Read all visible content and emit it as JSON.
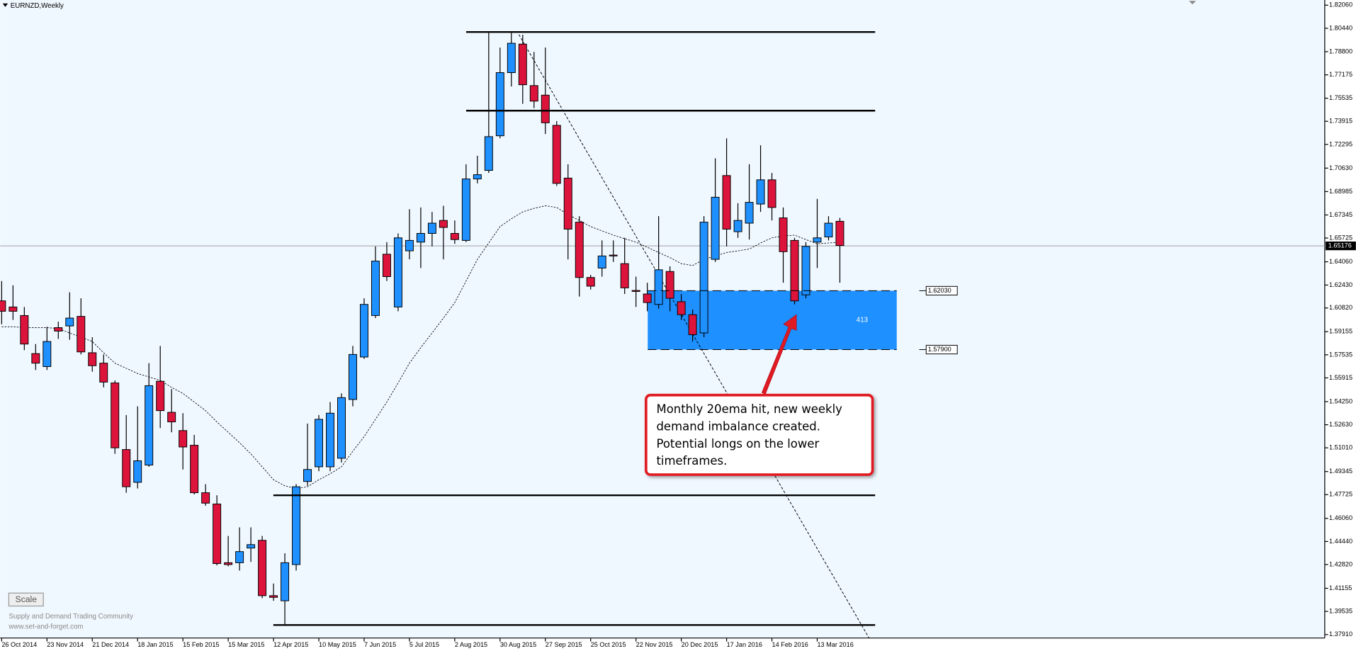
{
  "chart_data": {
    "type": "candlestick",
    "title": "EURNZD,Weekly",
    "categories": [
      "26 Oct 2014",
      null,
      null,
      null,
      "23 Nov 2014",
      null,
      null,
      null,
      "21 Dec 2014",
      null,
      null,
      null,
      "18 Jan 2015",
      null,
      null,
      null,
      "15 Feb 2015",
      null,
      null,
      null,
      "15 Mar 2015",
      null,
      null,
      null,
      "12 Apr 2015",
      null,
      null,
      null,
      "10 May 2015",
      null,
      null,
      null,
      "7 Jun 2015",
      null,
      null,
      null,
      "5 Jul 2015",
      null,
      null,
      null,
      "2 Aug 2015",
      null,
      null,
      null,
      "30 Aug 2015",
      null,
      null,
      null,
      "27 Sep 2015",
      null,
      null,
      null,
      "25 Oct 2015",
      null,
      null,
      null,
      "22 Nov 2015",
      null,
      null,
      null,
      "20 Dec 2015",
      null,
      null,
      null,
      "17 Jan 2016",
      null,
      null,
      null,
      "14 Feb 2016",
      null,
      null,
      null,
      "13 Mar 2016",
      null,
      null
    ],
    "open": [
      1.6132,
      1.6089,
      1.6029,
      1.5762,
      1.5671,
      1.5944,
      1.5956,
      1.6023,
      1.5768,
      1.5695,
      1.5556,
      1.5089,
      1.4859,
      1.498,
      1.5568,
      1.535,
      1.5222,
      1.5119,
      1.4786,
      1.4707,
      1.4295,
      1.4295,
      1.4398,
      1.4452,
      1.4064,
      1.4028,
      1.4282,
      1.4865,
      1.4968,
      1.4968,
      1.5028,
      1.544,
      1.5738,
      1.6029,
      1.6459,
      1.6089,
      1.6483,
      1.6544,
      1.6605,
      1.6696,
      1.6605,
      1.6556,
      1.6987,
      1.7047,
      1.729,
      1.7733,
      1.7933,
      1.7642,
      1.7575,
      1.7363,
      1.6993,
      1.6684,
      1.6296,
      1.6362,
      1.6453,
      1.6393,
      1.6205,
      1.618,
      1.6107,
      1.6338,
      1.6126,
      1.6035,
      1.5907,
      1.6423,
      1.7011,
      1.6617,
      1.6677,
      1.6811,
      1.6981,
      1.6714,
      1.6556,
      1.6174,
      1.6544,
      1.658,
      1.669
    ],
    "high": [
      1.6271,
      1.6241,
      1.6089,
      1.5829,
      1.595,
      1.5986,
      1.6192,
      1.615,
      1.5877,
      1.5756,
      1.5574,
      1.5331,
      1.5392,
      1.5695,
      1.5816,
      1.5513,
      1.5344,
      1.5192,
      1.4846,
      1.4768,
      1.4483,
      1.4543,
      1.4543,
      1.4483,
      1.4149,
      1.4361,
      1.4846,
      1.5271,
      1.5331,
      1.5422,
      1.5483,
      1.5816,
      1.615,
      1.6514,
      1.6544,
      1.6605,
      1.6775,
      1.6787,
      1.6756,
      1.6799,
      1.6696,
      1.709,
      1.715,
      1.8012,
      1.7909,
      1.8012,
      1.7999,
      1.7878,
      1.7909,
      1.7393,
      1.709,
      1.6726,
      1.6314,
      1.6556,
      1.6556,
      1.6574,
      1.6302,
      1.6259,
      1.6726,
      1.6374,
      1.618,
      1.6071,
      1.6726,
      1.7132,
      1.7272,
      1.6817,
      1.709,
      1.7223,
      1.7029,
      1.6787,
      1.6574,
      1.6544,
      1.6847,
      1.6726,
      1.6714
    ],
    "low": [
      1.5968,
      1.5998,
      1.5786,
      1.5647,
      1.5647,
      1.5865,
      1.5859,
      1.5756,
      1.5635,
      1.5525,
      1.5059,
      1.4786,
      1.4816,
      1.4968,
      1.524,
      1.521,
      1.4949,
      1.4774,
      1.4695,
      1.4276,
      1.427,
      1.424,
      1.4301,
      1.4046,
      1.4028,
      1.3864,
      1.424,
      1.4834,
      1.4937,
      1.4937,
      1.4998,
      1.5392,
      1.5725,
      1.6011,
      1.6271,
      1.6059,
      1.6423,
      1.6362,
      1.6514,
      1.6423,
      1.6532,
      1.6544,
      1.6956,
      1.7029,
      1.7272,
      1.7636,
      1.7514,
      1.7484,
      1.7302,
      1.6938,
      1.6423,
      1.6162,
      1.6211,
      1.6302,
      1.6405,
      1.618,
      1.6089,
      1.6059,
      1.6077,
      1.6059,
      1.5998,
      1.5847,
      1.5877,
      1.6405,
      1.6514,
      1.6574,
      1.6562,
      1.6756,
      1.6696,
      1.6259,
      1.6107,
      1.615,
      1.6362,
      1.6556,
      1.6259
    ],
    "close": [
      1.6059,
      1.6059,
      1.5829,
      1.5695,
      1.5847,
      1.592,
      1.6011,
      1.5774,
      1.5677,
      1.5562,
      1.5101,
      1.4828,
      1.501,
      1.5537,
      1.5362,
      1.5283,
      1.5107,
      1.4786,
      1.4713,
      1.4289,
      1.4282,
      1.4373,
      1.4422,
      1.4064,
      1.4052,
      1.4295,
      1.4828,
      1.4949,
      1.5301,
      1.5344,
      1.5453,
      1.5756,
      1.6107,
      1.6411,
      1.6302,
      1.6574,
      1.6556,
      1.6605,
      1.6677,
      1.6647,
      1.6562,
      1.6987,
      1.7017,
      1.7284,
      1.7733,
      1.7939,
      1.7648,
      1.7533,
      1.7381,
      1.6956,
      1.6635,
      1.6296,
      1.6235,
      1.6447,
      1.6447,
      1.6223,
      1.6198,
      1.612,
      1.635,
      1.615,
      1.6035,
      1.5895,
      1.6684,
      1.6859,
      1.6635,
      1.6696,
      1.6823,
      1.6981,
      1.6787,
      1.6477,
      1.6132,
      1.6514,
      1.6574,
      1.6677,
      1.652
    ],
    "ema": [
      1.595,
      1.595,
      1.5944,
      1.5944,
      1.5944,
      1.5938,
      1.5907,
      1.5877,
      1.5847,
      1.5768,
      1.5695,
      1.5659,
      1.5622,
      1.5598,
      1.5574,
      1.5525,
      1.5483,
      1.5422,
      1.5362,
      1.5283,
      1.521,
      1.5137,
      1.5059,
      1.4968,
      1.4877,
      1.4834,
      1.4816,
      1.4828,
      1.4877,
      1.4919,
      1.4968,
      1.5077,
      1.518,
      1.5301,
      1.5422,
      1.5556,
      1.5695,
      1.5804,
      1.5907,
      1.6011,
      1.612,
      1.6271,
      1.6423,
      1.6538,
      1.6653,
      1.6708,
      1.6756,
      1.6781,
      1.6799,
      1.6787,
      1.6738,
      1.6696,
      1.6653,
      1.6623,
      1.6593,
      1.6568,
      1.6544,
      1.6508,
      1.6471,
      1.6435,
      1.6393,
      1.638,
      1.6423,
      1.6447,
      1.6471,
      1.6483,
      1.6495,
      1.6538,
      1.6574,
      1.6587,
      1.6593,
      1.6562,
      1.6532,
      1.6538,
      1.6544
    ],
    "up_color": "#1e90ff",
    "down_color": "#dc143c",
    "ylim": [
      1.37667,
      1.82424
    ],
    "yticks": [
      {
        "value": 1.8206,
        "label": "1.82060"
      },
      {
        "value": 1.8044,
        "label": "1.80440"
      },
      {
        "value": 1.788,
        "label": "1.78800"
      },
      {
        "value": 1.77175,
        "label": "1.77175"
      },
      {
        "value": 1.75535,
        "label": "1.75535"
      },
      {
        "value": 1.73915,
        "label": "1.73915"
      },
      {
        "value": 1.72295,
        "label": "1.72295"
      },
      {
        "value": 1.7063,
        "label": "1.70630"
      },
      {
        "value": 1.68985,
        "label": "1.68985"
      },
      {
        "value": 1.67345,
        "label": "1.67345"
      },
      {
        "value": 1.65725,
        "label": "1.65725"
      },
      {
        "value": 1.6406,
        "label": "1.64060"
      },
      {
        "value": 1.6243,
        "label": "1.62430"
      },
      {
        "value": 1.6082,
        "label": "1.60820"
      },
      {
        "value": 1.59155,
        "label": "1.59155"
      },
      {
        "value": 1.57535,
        "label": "1.57535"
      },
      {
        "value": 1.55915,
        "label": "1.55915"
      },
      {
        "value": 1.5425,
        "label": "1.54250"
      },
      {
        "value": 1.5263,
        "label": "1.52630"
      },
      {
        "value": 1.5101,
        "label": "1.51010"
      },
      {
        "value": 1.49345,
        "label": "1.49345"
      },
      {
        "value": 1.47725,
        "label": "1.47725"
      },
      {
        "value": 1.4606,
        "label": "1.46060"
      },
      {
        "value": 1.4444,
        "label": "1.44440"
      },
      {
        "value": 1.4282,
        "label": "1.42820"
      },
      {
        "value": 1.41155,
        "label": "1.41155"
      },
      {
        "value": 1.39535,
        "label": "1.39535"
      },
      {
        "value": 1.3791,
        "label": "1.37910"
      }
    ],
    "current_price": {
      "value": 1.65176,
      "label": "1.65176"
    },
    "levels": [
      1.8018,
      1.7466,
      1.4768,
      1.3858
    ],
    "zone": {
      "top": {
        "value": 1.6203,
        "label": "1.62030"
      },
      "bottom": {
        "value": 1.579,
        "label": "1.57900"
      },
      "label": "413",
      "color": "#1e90ff"
    },
    "annotation": [
      "Monthly 20ema hit, new weekly",
      "demand imbalance created.",
      "Potential longs on the lower",
      "timeframes."
    ],
    "button": "Scale",
    "footer": [
      "Supply and Demand Trading Community",
      "www.set-and-forget.com"
    ]
  }
}
